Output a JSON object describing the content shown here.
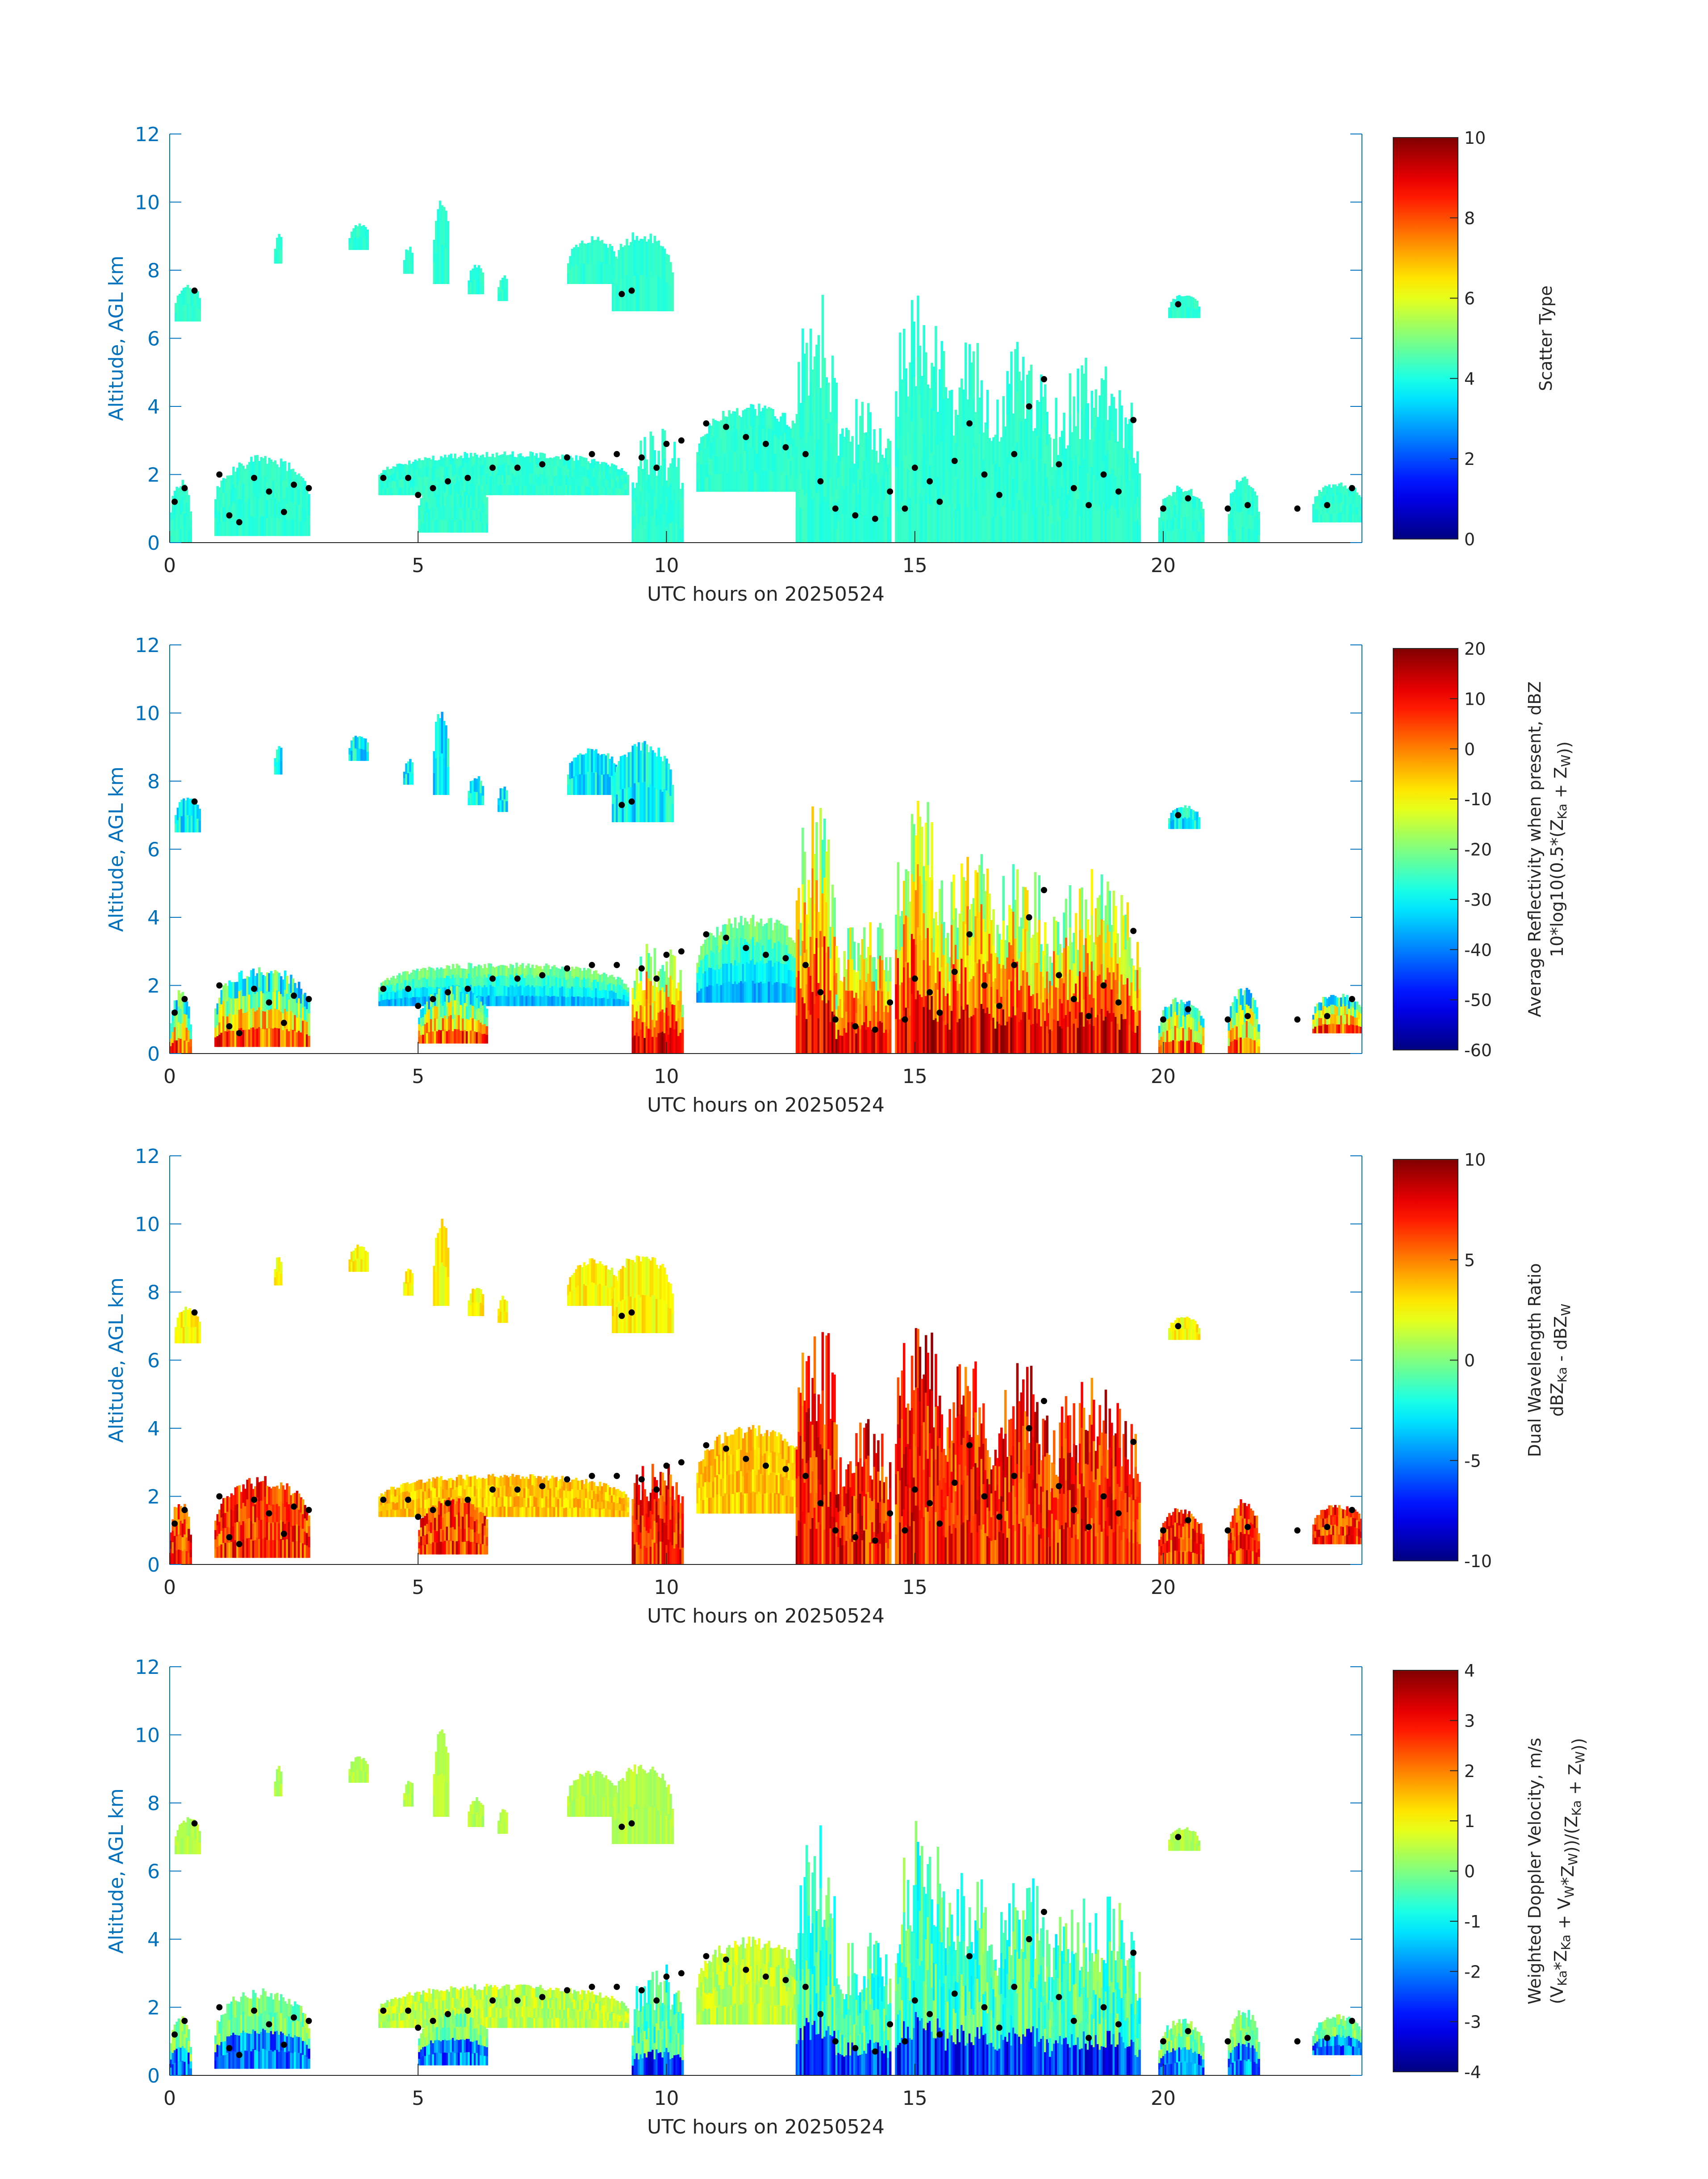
{
  "colors": {
    "axis": "#0072BD",
    "text": "#262626",
    "background": "#ffffff",
    "colormap": "jet"
  },
  "chart_data": [
    {
      "type": "heatmap",
      "title": "",
      "xlabel": "UTC hours on 20250524",
      "ylabel": "Altitude, AGL km",
      "xlim": [
        0,
        24
      ],
      "ylim": [
        0,
        12
      ],
      "xticks": [
        0,
        5,
        10,
        15,
        20
      ],
      "yticks": [
        0,
        2,
        4,
        6,
        8,
        10,
        12
      ],
      "grid": false,
      "colorbar": {
        "label_lines": [
          "Scatter Type"
        ],
        "clim": [
          0,
          10
        ],
        "ticks": [
          0,
          2,
          4,
          6,
          8,
          10
        ]
      },
      "field": "scatter"
    },
    {
      "type": "heatmap",
      "title": "",
      "xlabel": "UTC hours on 20250524",
      "ylabel": "Altitude, AGL km",
      "xlim": [
        0,
        24
      ],
      "ylim": [
        0,
        12
      ],
      "xticks": [
        0,
        5,
        10,
        15,
        20
      ],
      "yticks": [
        0,
        2,
        4,
        6,
        8,
        10,
        12
      ],
      "grid": false,
      "colorbar": {
        "label_lines": [
          "Average Reflectivity when present, dBZ",
          "10*log10(0.5*(Z_Ka + Z_W))"
        ],
        "clim": [
          -60,
          20
        ],
        "ticks": [
          -60,
          -50,
          -40,
          -30,
          -20,
          -10,
          0,
          10,
          20
        ]
      },
      "field": "reflectivity"
    },
    {
      "type": "heatmap",
      "title": "",
      "xlabel": "UTC hours on 20250524",
      "ylabel": "Altitude, AGL km",
      "xlim": [
        0,
        24
      ],
      "ylim": [
        0,
        12
      ],
      "xticks": [
        0,
        5,
        10,
        15,
        20
      ],
      "yticks": [
        0,
        2,
        4,
        6,
        8,
        10,
        12
      ],
      "grid": false,
      "colorbar": {
        "label_lines": [
          "Dual Wavelength Ratio",
          "dBZ_Ka - dBZ_W"
        ],
        "clim": [
          -10,
          10
        ],
        "ticks": [
          -10,
          -5,
          0,
          5,
          10
        ]
      },
      "field": "dwr"
    },
    {
      "type": "heatmap",
      "title": "",
      "xlabel": "UTC hours on 20250524",
      "ylabel": "Altitude, AGL km",
      "xlim": [
        0,
        24
      ],
      "ylim": [
        0,
        12
      ],
      "xticks": [
        0,
        5,
        10,
        15,
        20
      ],
      "yticks": [
        0,
        2,
        4,
        6,
        8,
        10,
        12
      ],
      "grid": false,
      "colorbar": {
        "label_lines": [
          "Weighted Doppler Velocity, m/s",
          "(V_Ka*Z_Ka + V_W*Z_W))/(Z_Ka + Z_W))"
        ],
        "clim": [
          -4,
          4
        ],
        "ticks": [
          -4,
          -3,
          -2,
          -1,
          0,
          1,
          2,
          3,
          4
        ]
      },
      "field": "velocity"
    }
  ],
  "cloud_features": [
    {
      "t": [
        0.1,
        0.6
      ],
      "z": [
        6.5,
        7.6
      ],
      "kind": "ice"
    },
    {
      "t": [
        2.1,
        2.25
      ],
      "z": [
        8.2,
        9.1
      ],
      "kind": "ice"
    },
    {
      "t": [
        3.6,
        4.0
      ],
      "z": [
        8.6,
        9.4
      ],
      "kind": "ice"
    },
    {
      "t": [
        4.7,
        4.9
      ],
      "z": [
        7.9,
        8.7
      ],
      "kind": "ice"
    },
    {
      "t": [
        5.3,
        5.6
      ],
      "z": [
        7.6,
        10.2
      ],
      "kind": "ice"
    },
    {
      "t": [
        6.0,
        6.3
      ],
      "z": [
        7.3,
        8.2
      ],
      "kind": "ice"
    },
    {
      "t": [
        6.6,
        6.8
      ],
      "z": [
        7.1,
        7.9
      ],
      "kind": "ice"
    },
    {
      "t": [
        8.0,
        9.0
      ],
      "z": [
        7.6,
        9.0
      ],
      "kind": "ice"
    },
    {
      "t": [
        8.9,
        10.1
      ],
      "z": [
        6.8,
        9.2
      ],
      "kind": "ice"
    },
    {
      "t": [
        20.1,
        20.7
      ],
      "z": [
        6.6,
        7.3
      ],
      "kind": "ice"
    },
    {
      "t": [
        0.0,
        0.4
      ],
      "z": [
        0.0,
        1.9
      ],
      "kind": "low"
    },
    {
      "t": [
        0.9,
        2.8
      ],
      "z": [
        0.2,
        2.6
      ],
      "kind": "low"
    },
    {
      "t": [
        4.2,
        9.2
      ],
      "z": [
        1.4,
        2.7
      ],
      "kind": "layer"
    },
    {
      "t": [
        5.0,
        6.4
      ],
      "z": [
        0.3,
        2.0
      ],
      "kind": "low"
    },
    {
      "t": [
        9.3,
        10.3
      ],
      "z": [
        0.0,
        3.4
      ],
      "kind": "conv"
    },
    {
      "t": [
        10.6,
        12.8
      ],
      "z": [
        1.5,
        4.1
      ],
      "kind": "layer"
    },
    {
      "t": [
        12.6,
        13.4
      ],
      "z": [
        0.0,
        7.5
      ],
      "kind": "conv"
    },
    {
      "t": [
        13.4,
        14.5
      ],
      "z": [
        0.0,
        4.3
      ],
      "kind": "conv"
    },
    {
      "t": [
        14.6,
        15.6
      ],
      "z": [
        0.0,
        7.6
      ],
      "kind": "conv"
    },
    {
      "t": [
        15.6,
        16.6
      ],
      "z": [
        0.0,
        6.2
      ],
      "kind": "conv"
    },
    {
      "t": [
        16.6,
        17.7
      ],
      "z": [
        0.0,
        6.0
      ],
      "kind": "conv"
    },
    {
      "t": [
        17.7,
        19.5
      ],
      "z": [
        0.0,
        5.5
      ],
      "kind": "conv"
    },
    {
      "t": [
        19.9,
        20.8
      ],
      "z": [
        0.0,
        1.7
      ],
      "kind": "low"
    },
    {
      "t": [
        21.3,
        21.9
      ],
      "z": [
        0.0,
        2.0
      ],
      "kind": "low"
    },
    {
      "t": [
        23.0,
        24.0
      ],
      "z": [
        0.6,
        1.8
      ],
      "kind": "low"
    }
  ],
  "cloud_base_points": [
    [
      0.1,
      1.2
    ],
    [
      0.3,
      1.6
    ],
    [
      0.5,
      7.4
    ],
    [
      1.0,
      2.0
    ],
    [
      1.2,
      0.8
    ],
    [
      1.4,
      0.6
    ],
    [
      1.7,
      1.9
    ],
    [
      2.0,
      1.5
    ],
    [
      2.3,
      0.9
    ],
    [
      2.5,
      1.7
    ],
    [
      2.8,
      1.6
    ],
    [
      4.3,
      1.9
    ],
    [
      4.8,
      1.9
    ],
    [
      5.0,
      1.4
    ],
    [
      5.3,
      1.6
    ],
    [
      5.6,
      1.8
    ],
    [
      6.0,
      1.9
    ],
    [
      6.5,
      2.2
    ],
    [
      7.0,
      2.2
    ],
    [
      7.5,
      2.3
    ],
    [
      8.0,
      2.5
    ],
    [
      8.5,
      2.6
    ],
    [
      9.0,
      2.6
    ],
    [
      9.1,
      7.3
    ],
    [
      9.3,
      7.4
    ],
    [
      9.5,
      2.5
    ],
    [
      9.8,
      2.2
    ],
    [
      10.0,
      2.9
    ],
    [
      10.3,
      3.0
    ],
    [
      10.8,
      3.5
    ],
    [
      11.2,
      3.4
    ],
    [
      11.6,
      3.1
    ],
    [
      12.0,
      2.9
    ],
    [
      12.4,
      2.8
    ],
    [
      12.8,
      2.6
    ],
    [
      13.1,
      1.8
    ],
    [
      13.4,
      1.0
    ],
    [
      13.8,
      0.8
    ],
    [
      14.2,
      0.7
    ],
    [
      14.5,
      1.5
    ],
    [
      14.8,
      1.0
    ],
    [
      15.0,
      2.2
    ],
    [
      15.3,
      1.8
    ],
    [
      15.5,
      1.2
    ],
    [
      15.8,
      2.4
    ],
    [
      16.1,
      3.5
    ],
    [
      16.4,
      2.0
    ],
    [
      16.7,
      1.4
    ],
    [
      17.0,
      2.6
    ],
    [
      17.3,
      4.0
    ],
    [
      17.6,
      4.8
    ],
    [
      17.9,
      2.3
    ],
    [
      18.2,
      1.6
    ],
    [
      18.5,
      1.1
    ],
    [
      18.8,
      2.0
    ],
    [
      19.1,
      1.5
    ],
    [
      19.4,
      3.6
    ],
    [
      20.0,
      1.0
    ],
    [
      20.3,
      7.0
    ],
    [
      20.5,
      1.3
    ],
    [
      21.3,
      1.0
    ],
    [
      21.7,
      1.1
    ],
    [
      22.7,
      1.0
    ],
    [
      23.3,
      1.1
    ],
    [
      23.8,
      1.6
    ]
  ]
}
